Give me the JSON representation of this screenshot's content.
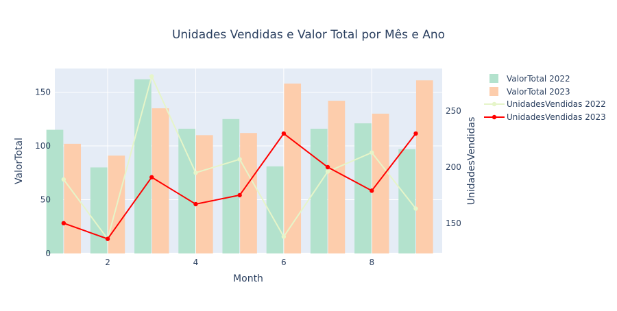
{
  "chart_data": {
    "type": "bar",
    "title": "Unidades Vendidas e Valor Total por Mês e Ano",
    "xlabel": "Month",
    "ylabel": "ValorTotal",
    "y2label": "UnidadesVendidas",
    "x": [
      1,
      2,
      3,
      4,
      5,
      6,
      7,
      8,
      9
    ],
    "xticks": [
      2,
      4,
      6,
      8
    ],
    "xlim": [
      0.8,
      9.6
    ],
    "ylim": [
      0,
      172
    ],
    "yticks": [
      0,
      50,
      100,
      150
    ],
    "y2lim": [
      123,
      288
    ],
    "y2ticks": [
      150,
      200,
      250
    ],
    "grid": true,
    "legend_position": "top-right outside",
    "bar_series": [
      {
        "name": "ValorTotal 2022",
        "color": "#b3e2cd",
        "values": [
          115,
          80,
          162,
          116,
          125,
          81,
          116,
          121,
          97
        ]
      },
      {
        "name": "ValorTotal 2023",
        "color": "#fdcdac",
        "values": [
          102,
          91,
          135,
          110,
          112,
          158,
          142,
          130,
          161
        ]
      }
    ],
    "line_series": [
      {
        "name": "UnidadesVendidas 2022",
        "color": "#e6f5c9",
        "values": [
          189,
          136,
          281,
          195,
          207,
          138,
          196,
          213,
          163
        ]
      },
      {
        "name": "UnidadesVendidas 2023",
        "color": "#ff0000",
        "values": [
          150,
          136,
          191,
          167,
          175,
          230,
          200,
          179,
          230
        ]
      }
    ]
  }
}
